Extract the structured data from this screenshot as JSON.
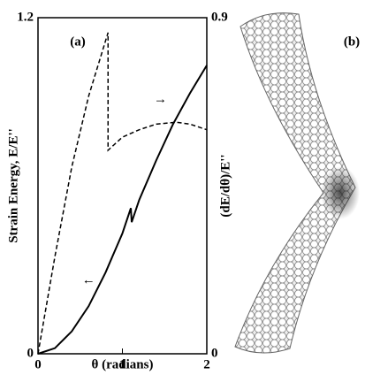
{
  "chart_data": {
    "type": "line",
    "panel_a": "(a)",
    "panel_b": "(b)",
    "xlabel": "θ (radians)",
    "ylabel": "Strain Energy, E/E''",
    "y2label": "(dE/dθ)/E''",
    "annotations": [
      {
        "text": "→",
        "x": 1.45,
        "y": 0.68,
        "axis": "y2"
      },
      {
        "text": "←",
        "x": 0.6,
        "y": 0.26,
        "axis": "y"
      }
    ],
    "xlim": [
      0,
      2
    ],
    "xticks": [
      0,
      1,
      2
    ],
    "ylim": [
      0,
      1.2
    ],
    "yticks": [
      0,
      1.2
    ],
    "y2lim": [
      0,
      0.9
    ],
    "y2ticks": [
      0,
      0.9
    ],
    "series": [
      {
        "name": "Strain Energy",
        "color": "#000000",
        "dash": false,
        "x": [
          0,
          0.2,
          0.4,
          0.6,
          0.8,
          1.0,
          1.1,
          1.11,
          1.2,
          1.4,
          1.6,
          1.8,
          2.0
        ],
        "values": [
          0,
          0.02,
          0.08,
          0.17,
          0.29,
          0.43,
          0.52,
          0.47,
          0.55,
          0.69,
          0.82,
          0.93,
          1.03
        ]
      },
      {
        "name": "dE/dθ",
        "color": "#000000",
        "dash": true,
        "axis": "y2",
        "x": [
          0,
          0.2,
          0.4,
          0.6,
          0.83,
          0.83,
          1.0,
          1.2,
          1.4,
          1.64,
          1.8,
          2.0
        ],
        "values": [
          0,
          0.26,
          0.5,
          0.69,
          0.86,
          0.545,
          0.58,
          0.6,
          0.615,
          0.62,
          0.615,
          0.6
        ]
      }
    ]
  }
}
